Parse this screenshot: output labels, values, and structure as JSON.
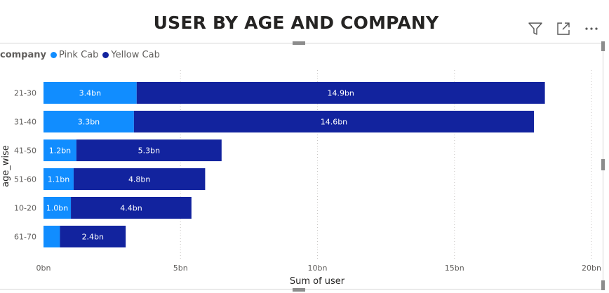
{
  "visual": {
    "title": "USER BY AGE AND COMPANY",
    "icons": [
      "filter-icon",
      "focus-mode-icon",
      "more-options-icon"
    ]
  },
  "legend": {
    "title": "company",
    "items": [
      {
        "label": "Pink Cab",
        "color": "#118DFF"
      },
      {
        "label": "Yellow Cab",
        "color": "#12239E"
      }
    ]
  },
  "chart_data": {
    "type": "bar",
    "orientation": "horizontal",
    "stacked": true,
    "categories": [
      "21-30",
      "31-40",
      "41-50",
      "51-60",
      "10-20",
      "61-70"
    ],
    "series": [
      {
        "name": "Pink Cab",
        "color": "#118DFF",
        "values": [
          3.4,
          3.3,
          1.2,
          1.1,
          1.0,
          0.6
        ],
        "labels": [
          "3.4bn",
          "3.3bn",
          "1.2bn",
          "1.1bn",
          "1.0bn",
          ""
        ]
      },
      {
        "name": "Yellow Cab",
        "color": "#12239E",
        "values": [
          14.9,
          14.6,
          5.3,
          4.8,
          4.4,
          2.4
        ],
        "labels": [
          "14.9bn",
          "14.6bn",
          "5.3bn",
          "4.8bn",
          "4.4bn",
          "2.4bn"
        ]
      }
    ],
    "xlabel": "Sum of user",
    "ylabel": "age_wise",
    "xlim": [
      0,
      20
    ],
    "xticks": [
      0,
      5,
      10,
      15,
      20
    ],
    "xtick_labels": [
      "0bn",
      "5bn",
      "10bn",
      "15bn",
      "20bn"
    ],
    "grid": true,
    "legend_position": "top-left"
  }
}
